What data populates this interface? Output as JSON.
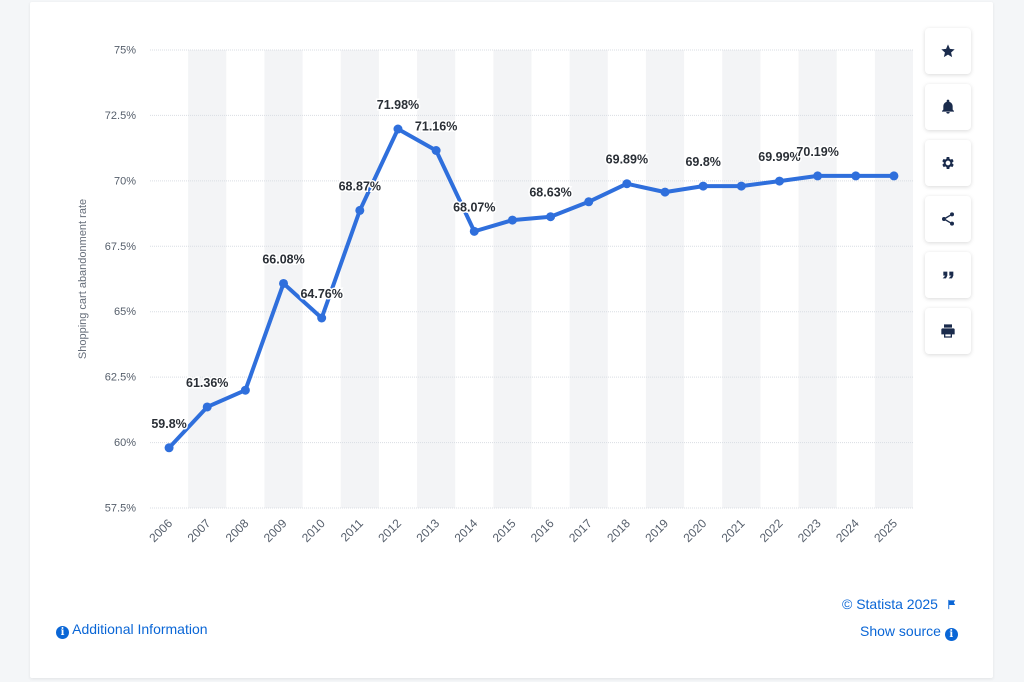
{
  "chart_data": {
    "type": "line",
    "ylabel": "Shopping cart abandonment rate",
    "categories": [
      "2006",
      "2007",
      "2008",
      "2009",
      "2010",
      "2011",
      "2012",
      "2013",
      "2014",
      "2015",
      "2016",
      "2017",
      "2018",
      "2019",
      "2020",
      "2021",
      "2022",
      "2023",
      "2024",
      "2025"
    ],
    "series": [
      {
        "color": "#2f6fdc",
        "values": [
          59.8,
          61.36,
          62.0,
          66.08,
          64.76,
          68.87,
          71.98,
          71.16,
          68.07,
          68.5,
          68.63,
          69.2,
          69.89,
          69.57,
          69.8,
          69.8,
          69.99,
          70.19,
          70.19,
          70.19
        ]
      }
    ],
    "data_labels": [
      {
        "index": 0,
        "text": "59.8%"
      },
      {
        "index": 1,
        "text": "61.36%"
      },
      {
        "index": 3,
        "text": "66.08%"
      },
      {
        "index": 4,
        "text": "64.76%"
      },
      {
        "index": 5,
        "text": "68.87%"
      },
      {
        "index": 6,
        "text": "71.98%"
      },
      {
        "index": 7,
        "text": "71.16%"
      },
      {
        "index": 8,
        "text": "68.07%"
      },
      {
        "index": 10,
        "text": "68.63%"
      },
      {
        "index": 12,
        "text": "69.89%"
      },
      {
        "index": 14,
        "text": "69.8%"
      },
      {
        "index": 16,
        "text": "69.99%"
      },
      {
        "index": 17,
        "text": "70.19%"
      }
    ],
    "ylim": [
      57.5,
      75
    ],
    "yticks": [
      57.5,
      60,
      62.5,
      65,
      67.5,
      70,
      72.5,
      75
    ],
    "ytick_labels": [
      "57.5%",
      "60%",
      "62.5%",
      "65%",
      "67.5%",
      "70%",
      "72.5%",
      "75%"
    ],
    "grid": true
  },
  "toolbar": {
    "buttons": [
      {
        "name": "star-icon"
      },
      {
        "name": "bell-icon"
      },
      {
        "name": "gear-icon"
      },
      {
        "name": "share-icon"
      },
      {
        "name": "quote-icon"
      },
      {
        "name": "print-icon"
      }
    ]
  },
  "footer": {
    "copyright": "© Statista 2025",
    "show_source": "Show source",
    "additional_info": "Additional Information"
  }
}
